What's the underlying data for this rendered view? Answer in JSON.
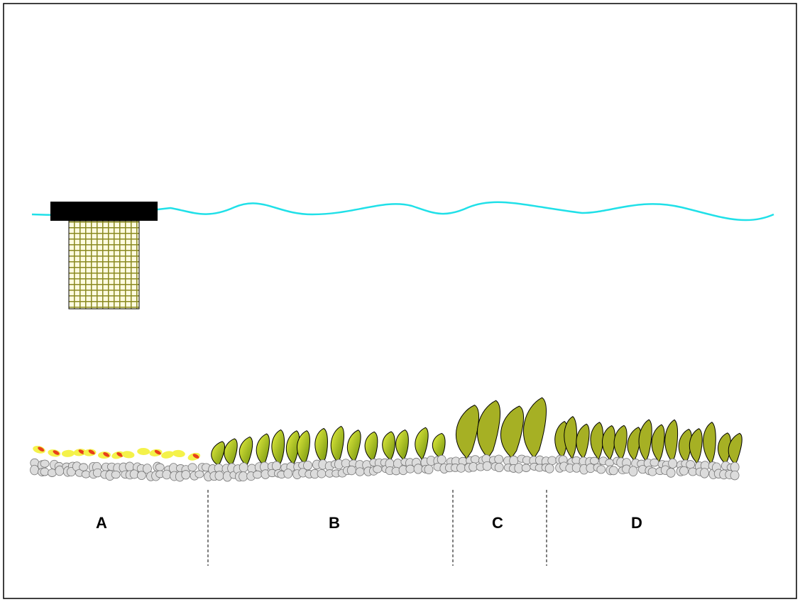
{
  "zones": [
    {
      "label": "A"
    },
    {
      "label": "B"
    },
    {
      "label": "C"
    },
    {
      "label": "D"
    }
  ]
}
